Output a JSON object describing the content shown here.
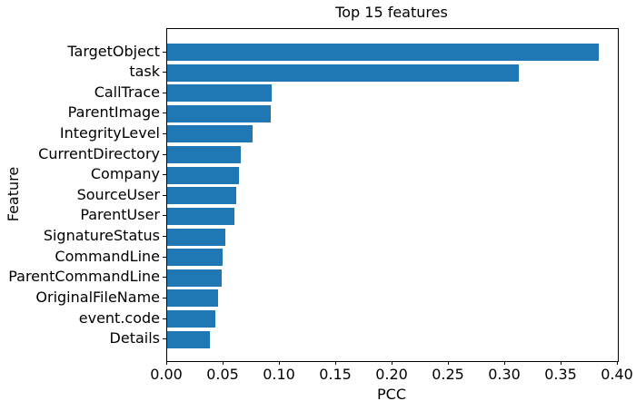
{
  "chart_data": {
    "type": "bar",
    "orientation": "horizontal",
    "title": "Top 15 features",
    "xlabel": "PCC",
    "ylabel": "Feature",
    "categories": [
      "TargetObject",
      "task",
      "CallTrace",
      "ParentImage",
      "IntegrityLevel",
      "CurrentDirectory",
      "Company",
      "SourceUser",
      "ParentUser",
      "SignatureStatus",
      "CommandLine",
      "ParentCommandLine",
      "OriginalFileName",
      "event.code",
      "Details"
    ],
    "values": [
      0.383,
      0.312,
      0.093,
      0.092,
      0.076,
      0.065,
      0.064,
      0.061,
      0.06,
      0.052,
      0.049,
      0.048,
      0.045,
      0.043,
      0.038
    ],
    "xlim": [
      0.0,
      0.4
    ],
    "xticks": [
      0.0,
      0.05,
      0.1,
      0.15,
      0.2,
      0.25,
      0.3,
      0.35,
      0.4
    ],
    "xtick_labels": [
      "0.00",
      "0.05",
      "0.10",
      "0.15",
      "0.20",
      "0.25",
      "0.30",
      "0.35",
      "0.40"
    ],
    "bar_color": "#1f77b4",
    "background": "#ffffff",
    "grid": false,
    "legend_position": "none"
  }
}
